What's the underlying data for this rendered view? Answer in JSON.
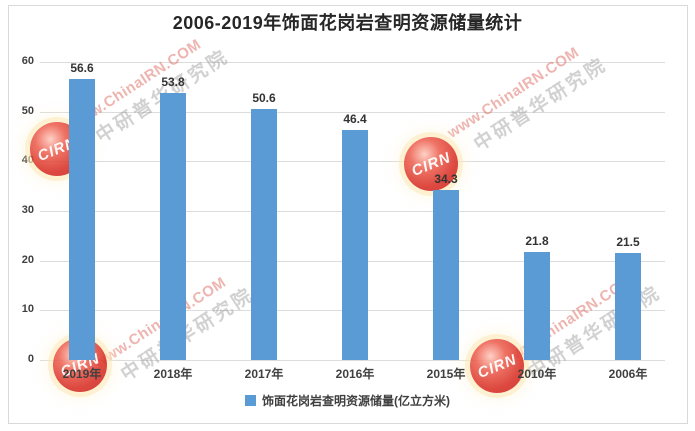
{
  "title": "2006-2019年饰面花岗岩查明资源储量统计",
  "chart_data": {
    "type": "bar",
    "title": "2006-2019年饰面花岗岩查明资源储量统计",
    "categories": [
      "2019年",
      "2018年",
      "2017年",
      "2016年",
      "2015年",
      "2010年",
      "2006年"
    ],
    "values": [
      56.6,
      53.8,
      50.6,
      46.4,
      34.3,
      21.8,
      21.5
    ],
    "xlabel": "",
    "ylabel": "",
    "ylim": [
      0,
      60
    ],
    "yticks": [
      0,
      10,
      20,
      30,
      40,
      50,
      60
    ],
    "grid": true,
    "legend": [
      "饰面花岗岩查明资源储量(亿立方米)"
    ],
    "legend_position": "bottom",
    "bar_color": "#5B9BD5",
    "data_labels": [
      "56.6",
      "53.8",
      "50.6",
      "46.4",
      "34.3",
      "21.8",
      "21.5"
    ]
  },
  "legend": {
    "label": "饰面花岗岩查明资源储量(亿立方米)"
  },
  "watermark": {
    "en": "www.ChinaIRN.COM",
    "cn": "中研普华研究院",
    "logo": "CIRN"
  },
  "colors": {
    "bar": "#5B9BD5",
    "grid": "#DCDCDC",
    "axis_text": "#404040",
    "value_text": "#333333",
    "title_text": "#262626",
    "border": "#D9D9D9"
  }
}
